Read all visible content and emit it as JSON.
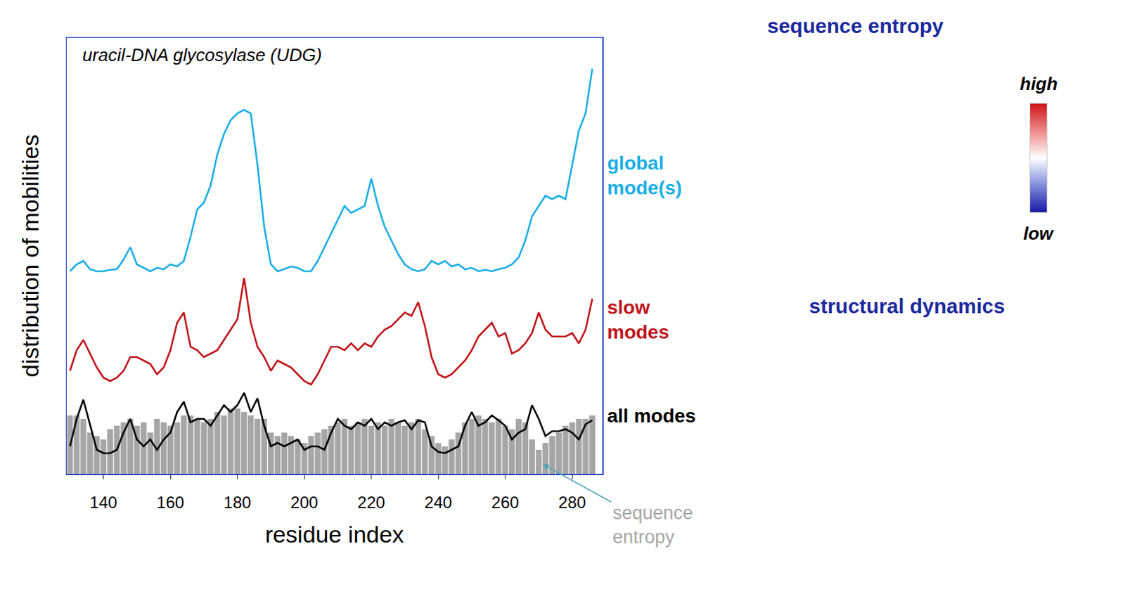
{
  "chart_data": {
    "type": "line",
    "title": "uracil-DNA glycosylase (UDG)",
    "x_label": "residue index",
    "y_label": "distribution of mobilities",
    "x": [
      130,
      132,
      134,
      136,
      138,
      140,
      142,
      144,
      146,
      148,
      150,
      152,
      154,
      156,
      158,
      160,
      162,
      164,
      166,
      168,
      170,
      172,
      174,
      176,
      178,
      180,
      182,
      184,
      186,
      188,
      190,
      192,
      194,
      196,
      198,
      200,
      202,
      204,
      206,
      208,
      210,
      212,
      214,
      216,
      218,
      220,
      222,
      224,
      226,
      228,
      230,
      232,
      234,
      236,
      238,
      240,
      242,
      244,
      246,
      248,
      250,
      252,
      254,
      256,
      258,
      260,
      262,
      264,
      266,
      268,
      270,
      272,
      274,
      276,
      278,
      280,
      282,
      284,
      286
    ],
    "xlim": [
      129,
      289
    ],
    "xticks": [
      140,
      160,
      180,
      200,
      220,
      240,
      260,
      280
    ],
    "ylim": [
      0,
      635
    ],
    "tick_labels": "x",
    "grid": false,
    "series": [
      {
        "name": "sequence entropy",
        "type": "bar",
        "color": "#a6a6a6",
        "values": [
          85,
          85,
          80,
          60,
          55,
          50,
          65,
          70,
          75,
          80,
          70,
          75,
          60,
          80,
          75,
          70,
          75,
          85,
          85,
          80,
          75,
          80,
          90,
          85,
          95,
          95,
          90,
          85,
          80,
          80,
          60,
          55,
          60,
          55,
          50,
          45,
          55,
          60,
          65,
          70,
          75,
          80,
          70,
          75,
          80,
          70,
          75,
          70,
          80,
          75,
          70,
          75,
          80,
          65,
          55,
          45,
          40,
          50,
          60,
          75,
          80,
          85,
          80,
          75,
          80,
          70,
          65,
          80,
          75,
          50,
          35,
          45,
          55,
          60,
          70,
          75,
          80,
          80,
          85
        ]
      },
      {
        "name": "global mode(s)",
        "type": "line",
        "color": "#1aaee5",
        "values": [
          295,
          305,
          310,
          298,
          295,
          295,
          297,
          298,
          312,
          330,
          305,
          300,
          295,
          300,
          298,
          305,
          302,
          310,
          345,
          385,
          395,
          420,
          465,
          495,
          515,
          525,
          530,
          525,
          450,
          360,
          305,
          295,
          298,
          302,
          300,
          295,
          295,
          310,
          330,
          350,
          370,
          390,
          380,
          385,
          390,
          430,
          390,
          360,
          340,
          320,
          305,
          298,
          295,
          298,
          310,
          305,
          310,
          302,
          305,
          298,
          300,
          295,
          297,
          295,
          298,
          300,
          305,
          315,
          340,
          375,
          390,
          405,
          400,
          405,
          400,
          450,
          500,
          525,
          590
        ]
      },
      {
        "name": "slow modes",
        "type": "line",
        "color": "#c0141a",
        "values": [
          150,
          180,
          195,
          175,
          155,
          140,
          135,
          140,
          150,
          170,
          170,
          165,
          160,
          145,
          155,
          180,
          220,
          235,
          185,
          180,
          170,
          175,
          180,
          195,
          210,
          225,
          285,
          220,
          185,
          170,
          150,
          165,
          160,
          155,
          145,
          135,
          130,
          145,
          165,
          185,
          185,
          180,
          190,
          180,
          190,
          185,
          200,
          210,
          215,
          225,
          235,
          230,
          250,
          215,
          170,
          145,
          140,
          145,
          155,
          165,
          180,
          200,
          210,
          220,
          200,
          205,
          175,
          180,
          190,
          205,
          235,
          210,
          200,
          200,
          200,
          205,
          190,
          210,
          255
        ]
      },
      {
        "name": "all modes",
        "type": "line",
        "color": "#000000",
        "values": [
          40,
          80,
          108,
          70,
          35,
          30,
          30,
          35,
          60,
          80,
          50,
          40,
          50,
          35,
          50,
          60,
          90,
          105,
          75,
          80,
          80,
          70,
          85,
          100,
          90,
          100,
          118,
          90,
          110,
          70,
          40,
          45,
          40,
          45,
          50,
          35,
          40,
          40,
          35,
          60,
          80,
          70,
          65,
          75,
          70,
          80,
          65,
          75,
          70,
          75,
          78,
          65,
          78,
          75,
          40,
          32,
          30,
          35,
          40,
          70,
          90,
          70,
          75,
          85,
          78,
          70,
          50,
          60,
          65,
          100,
          80,
          55,
          62,
          62,
          65,
          60,
          50,
          72,
          78
        ]
      }
    ]
  },
  "side_panels": {
    "titles": [
      "sequence entropy",
      "structural dynamics"
    ],
    "color_scale": {
      "high": "high",
      "low": "low"
    }
  }
}
